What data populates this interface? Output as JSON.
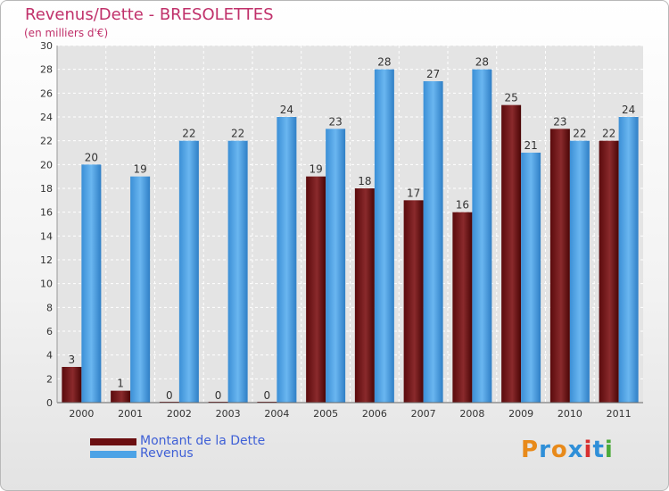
{
  "header": {
    "title": "Revenus/Dette - BRESOLETTES",
    "subtitle": "(en milliers d'€)"
  },
  "legend": {
    "items": [
      {
        "label": "Montant de la Dette",
        "color": "#6b0e10"
      },
      {
        "label": "Revenus",
        "color": "#4da3e6"
      }
    ]
  },
  "logo": {
    "text": "Proxiti",
    "colors": [
      "#e88a1a",
      "#2f8fd8",
      "#e88a1a",
      "#2f8fd8",
      "#d83030",
      "#2f8fd8",
      "#4caa3a"
    ]
  },
  "chart_data": {
    "type": "bar",
    "title": "Revenus/Dette - BRESOLETTES",
    "subtitle": "(en milliers d'€)",
    "xlabel": "",
    "ylabel": "",
    "ylim": [
      0,
      30
    ],
    "yticks": [
      0,
      2,
      4,
      6,
      8,
      10,
      12,
      14,
      16,
      18,
      20,
      22,
      24,
      26,
      28,
      30
    ],
    "grid": true,
    "legend_position": "bottom-left",
    "categories": [
      "2000",
      "2001",
      "2002",
      "2003",
      "2004",
      "2005",
      "2006",
      "2007",
      "2008",
      "2009",
      "2010",
      "2011"
    ],
    "series": [
      {
        "name": "Montant de la Dette",
        "color": "#6b0e10",
        "values": [
          3,
          1,
          0,
          0,
          0,
          19,
          18,
          17,
          16,
          25,
          23,
          22
        ]
      },
      {
        "name": "Revenus",
        "color": "#4da3e6",
        "values": [
          20,
          19,
          22,
          22,
          24,
          23,
          28,
          27,
          28,
          21,
          22,
          24
        ]
      }
    ]
  }
}
